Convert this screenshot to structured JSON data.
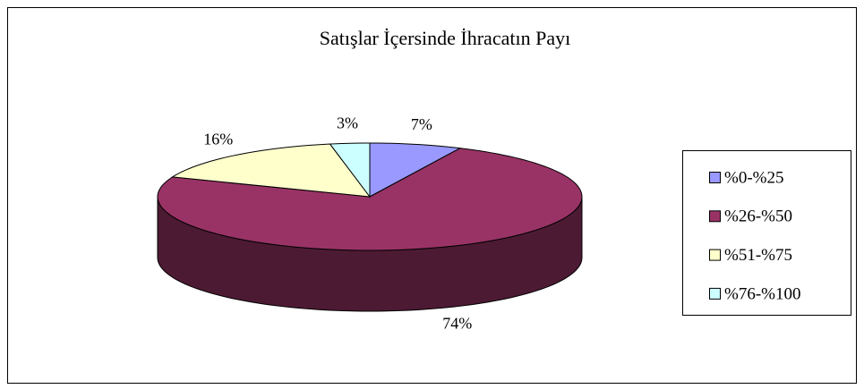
{
  "chart_data": {
    "type": "pie",
    "title": "Satışlar İçersinde İhracatın Payı",
    "categories": [
      "%0-%25",
      "%26-%50",
      "%51-%75",
      "%76-%100"
    ],
    "values": [
      7,
      74,
      16,
      3
    ],
    "value_labels": [
      "7%",
      "74%",
      "16%",
      "3%"
    ],
    "colors": [
      "#9999FF",
      "#993366",
      "#FFFFCC",
      "#CCFFFF"
    ],
    "legend": "right"
  }
}
